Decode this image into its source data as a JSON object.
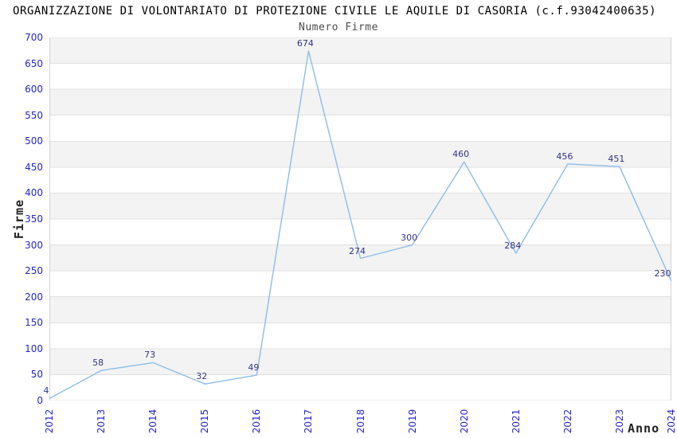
{
  "page": {
    "title": "ORGANIZZAZIONE DI VOLONTARIATO DI PROTEZIONE CIVILE LE AQUILE DI CASORIA (c.f.93042400635)"
  },
  "chart_data": {
    "type": "line",
    "title": "Numero Firme",
    "xlabel": "Anno",
    "ylabel": "Firme",
    "categories": [
      "2012",
      "2013",
      "2014",
      "2015",
      "2016",
      "2017",
      "2018",
      "2019",
      "2020",
      "2021",
      "2022",
      "2023",
      "2024"
    ],
    "series": [
      {
        "name": "Numero Firme",
        "values": [
          4,
          58,
          73,
          32,
          49,
          674,
          274,
          300,
          460,
          284,
          456,
          451,
          230
        ]
      }
    ],
    "ylim": [
      0,
      700
    ],
    "ytick_step": 50,
    "grid": true,
    "banded_background": true,
    "legend_position": "none",
    "data_labels_visible": true,
    "colors": {
      "line": "#8bbde9",
      "tick_label": "#2525d0",
      "data_label": "#333388",
      "band": "#f3f3f3",
      "gridline": "#e0e0e0",
      "plot_border": "#d4d4d4",
      "title": "#000000",
      "subtitle": "#4d4d4d",
      "axis_title": "#222222",
      "background": "#ffffff"
    }
  }
}
